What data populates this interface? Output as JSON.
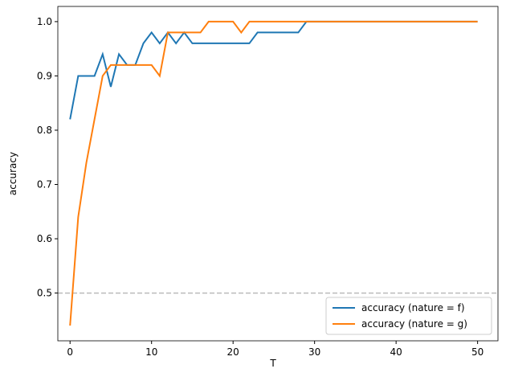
{
  "chart_data": {
    "type": "line",
    "x_label": "T",
    "y_label": "accuracy",
    "x": [
      0,
      1,
      2,
      3,
      4,
      5,
      6,
      7,
      8,
      9,
      10,
      11,
      12,
      13,
      14,
      15,
      16,
      17,
      18,
      19,
      20,
      21,
      22,
      23,
      24,
      25,
      26,
      27,
      28,
      29,
      30,
      31,
      32,
      33,
      34,
      35,
      36,
      37,
      38,
      39,
      40,
      41,
      42,
      43,
      44,
      45,
      46,
      47,
      48,
      49,
      50
    ],
    "series": [
      {
        "name": "accuracy (nature = f)",
        "color": "#1f77b4",
        "values": [
          0.82,
          0.9,
          0.9,
          0.9,
          0.94,
          0.88,
          0.94,
          0.92,
          0.92,
          0.96,
          0.98,
          0.96,
          0.98,
          0.96,
          0.98,
          0.96,
          0.96,
          0.96,
          0.96,
          0.96,
          0.96,
          0.96,
          0.96,
          0.98,
          0.98,
          0.98,
          0.98,
          0.98,
          0.98,
          1,
          1,
          1,
          1,
          1,
          1,
          1,
          1,
          1,
          1,
          1,
          1,
          1,
          1,
          1,
          1,
          1,
          1,
          1,
          1,
          1,
          1
        ]
      },
      {
        "name": "accuracy (nature = g)",
        "color": "#ff7f0e",
        "values": [
          0.44,
          0.64,
          0.74,
          0.82,
          0.9,
          0.92,
          0.92,
          0.92,
          0.92,
          0.92,
          0.92,
          0.9,
          0.98,
          0.98,
          0.98,
          0.98,
          0.98,
          1,
          1,
          1,
          1,
          0.98,
          1,
          1,
          1,
          1,
          1,
          1,
          1,
          1,
          1,
          1,
          1,
          1,
          1,
          1,
          1,
          1,
          1,
          1,
          1,
          1,
          1,
          1,
          1,
          1,
          1,
          1,
          1,
          1,
          1
        ]
      }
    ],
    "hline": {
      "y": 0.5,
      "color": "#bbbbbb"
    },
    "xlim": [
      -1.5,
      52.5
    ],
    "ylim": [
      0.412,
      1.028
    ],
    "xticks": [
      0,
      10,
      20,
      30,
      40,
      50
    ],
    "yticks": [
      0.5,
      0.6,
      0.7,
      0.8,
      0.9,
      {
        "value": 1,
        "label": "1.0"
      }
    ],
    "legend": "lower right"
  }
}
